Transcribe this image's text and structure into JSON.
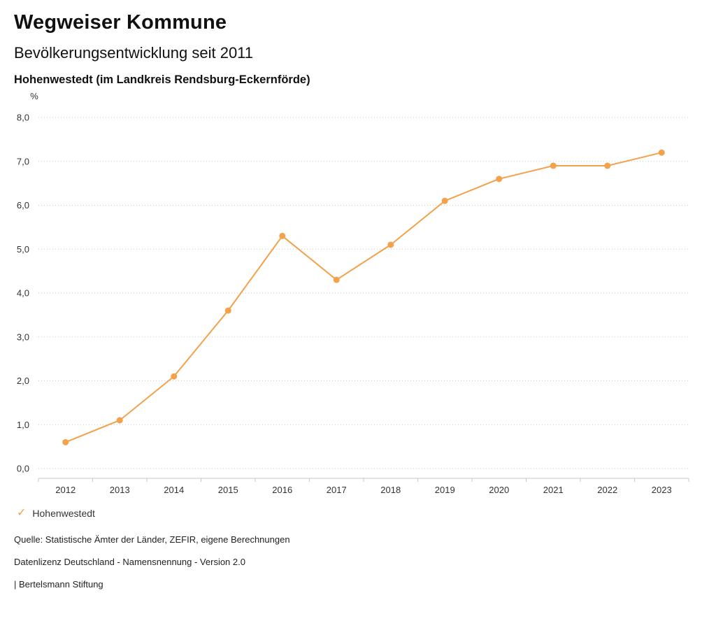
{
  "header": {
    "title": "Wegweiser Kommune",
    "subtitle": "Bevölkerungsentwicklung seit 2011",
    "region": "Hohenwestedt (im Landkreis Rendsburg-Eckernförde)"
  },
  "chart_data": {
    "type": "line",
    "title": "Bevölkerungsentwicklung seit 2011",
    "subtitle": "Hohenwestedt (im Landkreis Rendsburg-Eckernförde)",
    "unit_label": "%",
    "categories": [
      "2012",
      "2013",
      "2014",
      "2015",
      "2016",
      "2017",
      "2018",
      "2019",
      "2020",
      "2021",
      "2022",
      "2023"
    ],
    "series": [
      {
        "name": "Hohenwestedt",
        "color": "#f3a14a",
        "values": [
          0.6,
          1.1,
          2.1,
          3.6,
          5.3,
          4.3,
          5.1,
          6.1,
          6.6,
          6.9,
          6.9,
          7.2
        ]
      }
    ],
    "xlabel": "",
    "ylabel": "%",
    "ylim": [
      0,
      8
    ],
    "ytick_step": 1,
    "ytick_labels": [
      "0,0",
      "1,0",
      "2,0",
      "3,0",
      "4,0",
      "5,0",
      "6,0",
      "7,0",
      "8,0"
    ],
    "grid": true,
    "grid_style": "dotted",
    "legend_position": "bottom-left"
  },
  "legend": {
    "items": [
      {
        "label": "Hohenwestedt",
        "marker": "check",
        "color": "#f3a14a"
      }
    ]
  },
  "footer": {
    "source": "Quelle: Statistische Ämter der Länder, ZEFIR, eigene Berechnungen",
    "license": "Datenlizenz Deutschland - Namensnennung - Version 2.0",
    "attribution": "| Bertelsmann Stiftung"
  }
}
